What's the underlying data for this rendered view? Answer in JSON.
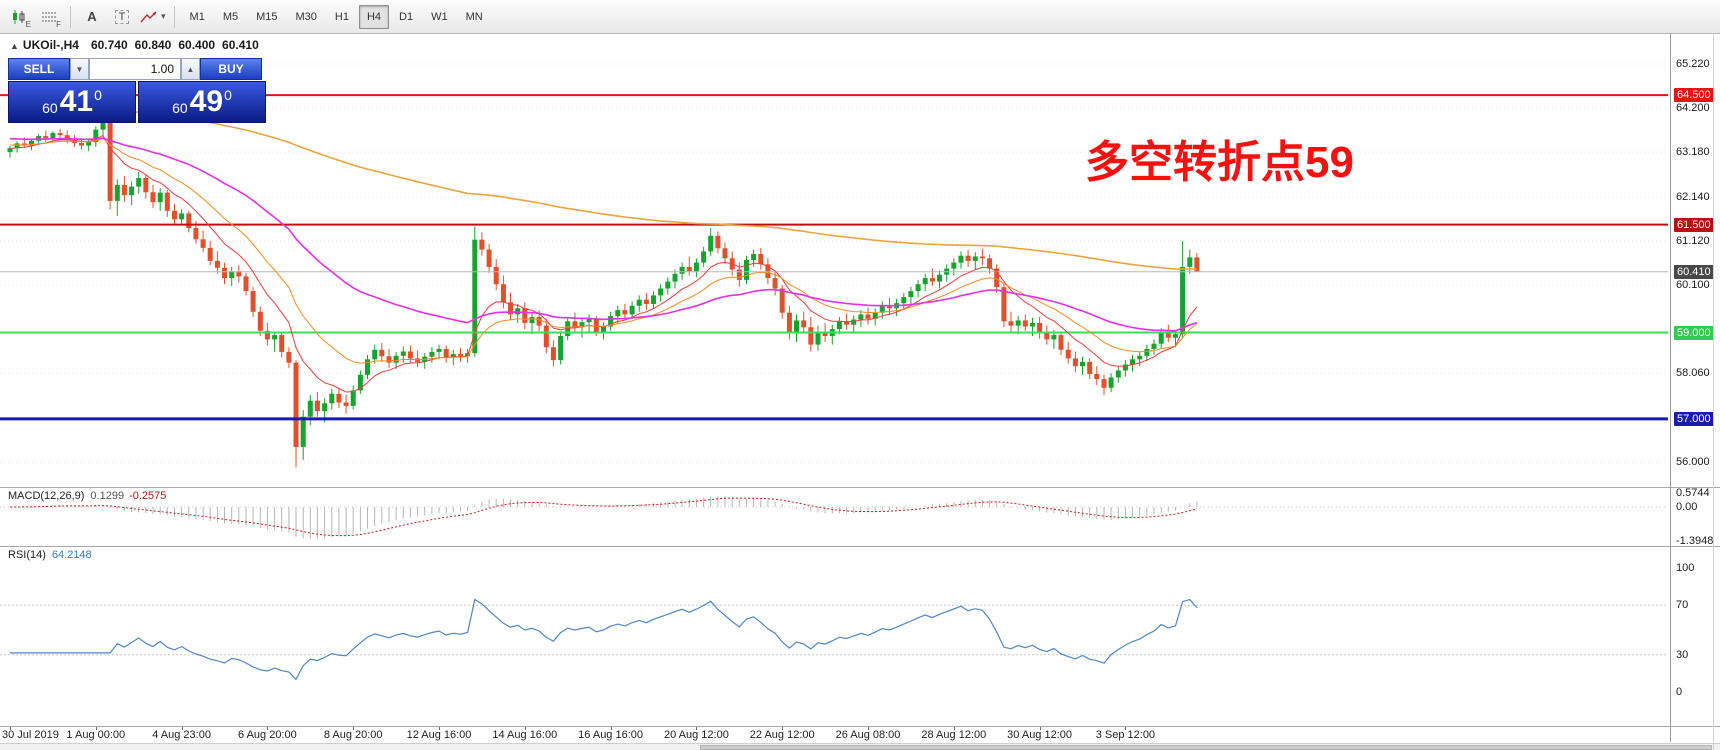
{
  "icons": {
    "caret_down": "▼",
    "caret_up": "▲",
    "dropdown_caret": "▾",
    "symbol_marker": "▲"
  },
  "toolbar": {
    "icon_e_label": "E",
    "icon_f_label": "F",
    "text_tool_label": "A",
    "textbox_tool_label": "T",
    "timeframes": [
      "M1",
      "M5",
      "M15",
      "M30",
      "H1",
      "H4",
      "D1",
      "W1",
      "MN"
    ],
    "active_timeframe": "H4"
  },
  "chart": {
    "info": {
      "marker": "▲",
      "symbol_period": "UKOil-,H4",
      "open": "60.740",
      "high": "60.840",
      "low": "60.400",
      "close": "60.410"
    },
    "annotation": {
      "text": "多空转折点59",
      "color": "#fb1010"
    },
    "trade_panel": {
      "sell_label": "SELL",
      "buy_label": "BUY",
      "volume": "1.00",
      "sell_price": {
        "small": "60",
        "big": "41",
        "sup": "0"
      },
      "buy_price": {
        "small": "60",
        "big": "49",
        "sup": "0"
      }
    },
    "levels": [
      {
        "p": 64.5,
        "label": "64.500",
        "color": "#e81414",
        "w": 2
      },
      {
        "p": 61.5,
        "label": "61.500",
        "color": "#bb1010",
        "w": 2
      },
      {
        "p": 60.41,
        "label": "60.410",
        "color": "#b8b8b8",
        "w": 1
      },
      {
        "p": 59.0,
        "label": "59.000",
        "color": "#35df57",
        "w": 2
      },
      {
        "p": 57.0,
        "label": "57.000",
        "color": "#1b1bb2",
        "w": 3
      }
    ],
    "price_axis": [
      {
        "p": 65.22,
        "t": "65.220",
        "grid": true
      },
      {
        "p": 64.5,
        "t": "64.500",
        "tag": "#e81414"
      },
      {
        "p": 64.2,
        "t": "64.200",
        "grid": true
      },
      {
        "p": 63.18,
        "t": "63.180",
        "grid": true
      },
      {
        "p": 62.14,
        "t": "62.140",
        "grid": true
      },
      {
        "p": 61.5,
        "t": "61.500",
        "tag": "#bb1010"
      },
      {
        "p": 61.12,
        "t": "61.120",
        "grid": true
      },
      {
        "p": 60.41,
        "t": "60.410",
        "tag": "#484848",
        "current": true
      },
      {
        "p": 60.1,
        "t": "60.100",
        "grid": true
      },
      {
        "p": 59.0,
        "t": "59.000",
        "tag": "#2fcc52"
      },
      {
        "p": 58.06,
        "t": "58.060",
        "grid": true
      },
      {
        "p": 57.0,
        "t": "57.000",
        "tag": "#1b1bb2"
      },
      {
        "p": 56.0,
        "t": "56.000",
        "grid": true
      }
    ]
  },
  "chart_data": {
    "type": "candlestick",
    "symbol": "UKOil-",
    "timeframe": "H4",
    "up_color": "#17a42e",
    "down_color": "#e2502b",
    "moving_averages": [
      {
        "period": 9,
        "seed": 63.25,
        "color": "#f23c3c",
        "width": 1
      },
      {
        "period": 18,
        "seed": 63.35,
        "color": "#ff8a1e",
        "width": 1
      },
      {
        "period": 45,
        "seed": 63.5,
        "color": "#e531e5",
        "width": 1.6
      },
      {
        "period": 200,
        "seed": 64.3,
        "color": "#eea43c",
        "width": 1.6
      }
    ],
    "time_labels": [
      {
        "index": 0,
        "text": "30 Jul 2019"
      },
      {
        "index": 12,
        "text": "1 Aug 00:00"
      },
      {
        "index": 24,
        "text": "4 Aug 23:00"
      },
      {
        "index": 36,
        "text": "6 Aug 20:00"
      },
      {
        "index": 48,
        "text": "8 Aug 20:00"
      },
      {
        "index": 60,
        "text": "12 Aug 16:00"
      },
      {
        "index": 72,
        "text": "14 Aug 16:00"
      },
      {
        "index": 84,
        "text": "16 Aug 16:00"
      },
      {
        "index": 96,
        "text": "20 Aug 12:00"
      },
      {
        "index": 108,
        "text": "22 Aug 12:00"
      },
      {
        "index": 120,
        "text": "26 Aug 08:00"
      },
      {
        "index": 132,
        "text": "28 Aug 12:00"
      },
      {
        "index": 144,
        "text": "30 Aug 12:00"
      },
      {
        "index": 156,
        "text": "3 Sep 12:00"
      }
    ],
    "candles": [
      [
        63.18,
        63.32,
        63.05,
        63.27
      ],
      [
        63.27,
        63.43,
        63.17,
        63.38
      ],
      [
        63.38,
        63.52,
        63.28,
        63.33
      ],
      [
        63.33,
        63.49,
        63.22,
        63.44
      ],
      [
        63.44,
        63.6,
        63.34,
        63.55
      ],
      [
        63.55,
        63.68,
        63.42,
        63.5
      ],
      [
        63.5,
        63.66,
        63.4,
        63.62
      ],
      [
        63.62,
        63.72,
        63.48,
        63.57
      ],
      [
        63.57,
        63.68,
        63.38,
        63.46
      ],
      [
        63.46,
        63.58,
        63.3,
        63.39
      ],
      [
        63.39,
        63.5,
        63.24,
        63.33
      ],
      [
        63.33,
        63.46,
        63.2,
        63.41
      ],
      [
        63.41,
        63.78,
        63.3,
        63.7
      ],
      [
        63.7,
        64.05,
        63.55,
        63.92
      ],
      [
        63.92,
        63.98,
        61.85,
        62.05
      ],
      [
        62.05,
        62.55,
        61.7,
        62.42
      ],
      [
        62.42,
        62.62,
        62.02,
        62.18
      ],
      [
        62.18,
        62.5,
        61.95,
        62.38
      ],
      [
        62.38,
        62.72,
        62.22,
        62.58
      ],
      [
        62.58,
        62.66,
        62.1,
        62.25
      ],
      [
        62.25,
        62.42,
        61.88,
        62.02
      ],
      [
        62.02,
        62.35,
        61.82,
        62.24
      ],
      [
        62.24,
        62.3,
        61.68,
        61.82
      ],
      [
        61.82,
        61.98,
        61.48,
        61.62
      ],
      [
        61.62,
        61.86,
        61.52,
        61.76
      ],
      [
        61.76,
        61.82,
        61.32,
        61.42
      ],
      [
        61.42,
        61.58,
        61.06,
        61.16
      ],
      [
        61.16,
        61.36,
        60.86,
        60.96
      ],
      [
        60.96,
        61.12,
        60.56,
        60.66
      ],
      [
        60.66,
        60.88,
        60.36,
        60.5
      ],
      [
        60.5,
        60.62,
        60.12,
        60.26
      ],
      [
        60.26,
        60.52,
        60.08,
        60.42
      ],
      [
        60.42,
        60.56,
        60.16,
        60.3
      ],
      [
        60.3,
        60.38,
        59.86,
        59.96
      ],
      [
        59.96,
        60.06,
        59.36,
        59.48
      ],
      [
        59.48,
        59.6,
        58.92,
        59.04
      ],
      [
        59.04,
        59.22,
        58.7,
        58.84
      ],
      [
        58.84,
        59.02,
        58.55,
        58.94
      ],
      [
        58.94,
        59.0,
        58.42,
        58.55
      ],
      [
        58.55,
        58.66,
        58.18,
        58.3
      ],
      [
        58.3,
        58.36,
        55.88,
        56.35
      ],
      [
        56.35,
        57.2,
        56.05,
        57.05
      ],
      [
        57.05,
        57.55,
        56.85,
        57.42
      ],
      [
        57.42,
        57.62,
        57.05,
        57.18
      ],
      [
        57.18,
        57.48,
        56.92,
        57.36
      ],
      [
        57.36,
        57.7,
        57.22,
        57.58
      ],
      [
        57.58,
        57.72,
        57.25,
        57.38
      ],
      [
        57.38,
        57.56,
        57.12,
        57.3
      ],
      [
        57.3,
        57.78,
        57.22,
        57.66
      ],
      [
        57.66,
        58.12,
        57.58,
        58.02
      ],
      [
        58.02,
        58.48,
        57.92,
        58.38
      ],
      [
        58.38,
        58.72,
        58.28,
        58.6
      ],
      [
        58.6,
        58.76,
        58.32,
        58.45
      ],
      [
        58.45,
        58.62,
        58.18,
        58.3
      ],
      [
        58.3,
        58.55,
        58.15,
        58.46
      ],
      [
        58.46,
        58.68,
        58.3,
        58.56
      ],
      [
        58.56,
        58.7,
        58.28,
        58.4
      ],
      [
        58.4,
        58.58,
        58.2,
        58.32
      ],
      [
        58.32,
        58.52,
        58.16,
        58.44
      ],
      [
        58.44,
        58.66,
        58.3,
        58.55
      ],
      [
        58.55,
        58.72,
        58.38,
        58.62
      ],
      [
        58.62,
        58.7,
        58.3,
        58.42
      ],
      [
        58.42,
        58.6,
        58.24,
        58.5
      ],
      [
        58.5,
        58.64,
        58.32,
        58.45
      ],
      [
        58.45,
        58.62,
        58.3,
        58.52
      ],
      [
        58.52,
        61.45,
        58.44,
        61.15
      ],
      [
        61.15,
        61.32,
        60.78,
        60.92
      ],
      [
        60.92,
        61.05,
        60.38,
        60.52
      ],
      [
        60.52,
        60.7,
        59.98,
        60.12
      ],
      [
        60.12,
        60.32,
        59.56,
        59.7
      ],
      [
        59.7,
        59.92,
        59.28,
        59.42
      ],
      [
        59.42,
        59.66,
        59.22,
        59.56
      ],
      [
        59.56,
        59.7,
        59.08,
        59.22
      ],
      [
        59.22,
        59.46,
        58.96,
        59.36
      ],
      [
        59.36,
        59.52,
        59.04,
        59.16
      ],
      [
        59.16,
        59.32,
        58.52,
        58.66
      ],
      [
        58.66,
        58.82,
        58.22,
        58.36
      ],
      [
        58.36,
        59.02,
        58.26,
        58.92
      ],
      [
        58.92,
        59.36,
        58.82,
        59.26
      ],
      [
        59.26,
        59.46,
        59.02,
        59.12
      ],
      [
        59.12,
        59.34,
        58.88,
        59.24
      ],
      [
        59.24,
        59.42,
        59.02,
        59.32
      ],
      [
        59.32,
        59.38,
        58.92,
        59.02
      ],
      [
        59.02,
        59.24,
        58.84,
        59.14
      ],
      [
        59.14,
        59.48,
        59.04,
        59.38
      ],
      [
        59.38,
        59.62,
        59.22,
        59.52
      ],
      [
        59.52,
        59.66,
        59.28,
        59.42
      ],
      [
        59.42,
        59.72,
        59.32,
        59.62
      ],
      [
        59.62,
        59.86,
        59.48,
        59.76
      ],
      [
        59.76,
        59.92,
        59.52,
        59.66
      ],
      [
        59.66,
        59.96,
        59.56,
        59.86
      ],
      [
        59.86,
        60.12,
        59.72,
        60.02
      ],
      [
        60.02,
        60.28,
        59.88,
        60.18
      ],
      [
        60.18,
        60.46,
        60.02,
        60.36
      ],
      [
        60.36,
        60.62,
        60.22,
        60.52
      ],
      [
        60.52,
        60.76,
        60.32,
        60.42
      ],
      [
        60.42,
        60.72,
        60.28,
        60.62
      ],
      [
        60.62,
        60.98,
        60.52,
        60.88
      ],
      [
        60.88,
        61.42,
        60.78,
        61.24
      ],
      [
        61.24,
        61.34,
        60.84,
        60.95
      ],
      [
        60.95,
        61.08,
        60.58,
        60.72
      ],
      [
        60.72,
        60.88,
        60.32,
        60.46
      ],
      [
        60.46,
        60.62,
        60.06,
        60.22
      ],
      [
        60.22,
        60.78,
        60.12,
        60.68
      ],
      [
        60.68,
        60.92,
        60.52,
        60.82
      ],
      [
        60.82,
        60.96,
        60.46,
        60.58
      ],
      [
        60.58,
        60.72,
        60.12,
        60.26
      ],
      [
        60.26,
        60.42,
        59.86,
        60.02
      ],
      [
        60.02,
        60.1,
        59.32,
        59.46
      ],
      [
        59.46,
        59.62,
        58.84,
        58.98
      ],
      [
        58.98,
        59.42,
        58.78,
        59.28
      ],
      [
        59.28,
        59.48,
        58.98,
        59.12
      ],
      [
        59.12,
        59.36,
        58.56,
        58.72
      ],
      [
        58.72,
        59.16,
        58.58,
        59.02
      ],
      [
        59.02,
        59.22,
        58.78,
        58.92
      ],
      [
        58.92,
        59.18,
        58.72,
        59.08
      ],
      [
        59.08,
        59.36,
        58.96,
        59.26
      ],
      [
        59.26,
        59.44,
        59.06,
        59.18
      ],
      [
        59.18,
        59.4,
        59.0,
        59.3
      ],
      [
        59.3,
        59.52,
        59.12,
        59.42
      ],
      [
        59.42,
        59.58,
        59.18,
        59.32
      ],
      [
        59.32,
        59.56,
        59.16,
        59.46
      ],
      [
        59.46,
        59.72,
        59.32,
        59.62
      ],
      [
        59.62,
        59.8,
        59.42,
        59.56
      ],
      [
        59.56,
        59.78,
        59.38,
        59.68
      ],
      [
        59.68,
        59.92,
        59.52,
        59.82
      ],
      [
        59.82,
        60.06,
        59.66,
        59.96
      ],
      [
        59.96,
        60.22,
        59.82,
        60.12
      ],
      [
        60.12,
        60.36,
        59.96,
        60.26
      ],
      [
        60.26,
        60.48,
        60.08,
        60.18
      ],
      [
        60.18,
        60.44,
        60.02,
        60.34
      ],
      [
        60.34,
        60.58,
        60.18,
        60.48
      ],
      [
        60.48,
        60.72,
        60.32,
        60.62
      ],
      [
        60.62,
        60.88,
        60.48,
        60.78
      ],
      [
        60.78,
        60.92,
        60.52,
        60.66
      ],
      [
        60.66,
        60.86,
        60.46,
        60.76
      ],
      [
        60.76,
        60.94,
        60.56,
        60.72
      ],
      [
        60.72,
        60.8,
        60.36,
        60.48
      ],
      [
        60.48,
        60.58,
        59.92,
        60.05
      ],
      [
        60.05,
        60.15,
        59.12,
        59.26
      ],
      [
        59.26,
        59.48,
        59.02,
        59.16
      ],
      [
        59.16,
        59.38,
        58.96,
        59.28
      ],
      [
        59.28,
        59.42,
        59.04,
        59.14
      ],
      [
        59.14,
        59.34,
        58.92,
        59.22
      ],
      [
        59.22,
        59.36,
        58.86,
        58.98
      ],
      [
        58.98,
        59.16,
        58.72,
        58.84
      ],
      [
        58.84,
        59.06,
        58.62,
        58.94
      ],
      [
        58.94,
        59.02,
        58.48,
        58.6
      ],
      [
        58.6,
        58.78,
        58.28,
        58.4
      ],
      [
        58.4,
        58.56,
        58.08,
        58.22
      ],
      [
        58.22,
        58.44,
        58.02,
        58.32
      ],
      [
        58.32,
        58.4,
        57.92,
        58.04
      ],
      [
        58.04,
        58.22,
        57.78,
        57.92
      ],
      [
        57.92,
        58.02,
        57.55,
        57.72
      ],
      [
        57.72,
        58.06,
        57.62,
        57.96
      ],
      [
        57.96,
        58.22,
        57.84,
        58.12
      ],
      [
        58.12,
        58.36,
        57.98,
        58.26
      ],
      [
        58.26,
        58.48,
        58.1,
        58.38
      ],
      [
        58.38,
        58.56,
        58.22,
        58.46
      ],
      [
        58.46,
        58.72,
        58.34,
        58.62
      ],
      [
        58.62,
        58.84,
        58.48,
        58.74
      ],
      [
        58.74,
        59.1,
        58.62,
        59.0
      ],
      [
        59.0,
        59.18,
        58.78,
        58.88
      ],
      [
        58.88,
        59.06,
        58.66,
        58.96
      ],
      [
        58.96,
        61.12,
        58.88,
        60.52
      ],
      [
        60.52,
        60.92,
        60.36,
        60.74
      ],
      [
        60.74,
        60.84,
        60.4,
        60.41
      ]
    ]
  },
  "macd": {
    "title": "MACD(12,26,9)",
    "value_main": "0.1299",
    "value_signal": "-0.2575",
    "params": {
      "fast": 12,
      "slow": 26,
      "signal": 9
    },
    "range": {
      "max": 0.5744,
      "min": -1.3948
    },
    "axis": [
      {
        "v": 0.5744,
        "t": "0.5744"
      },
      {
        "v": 0,
        "t": "0.00"
      },
      {
        "v": -1.3948,
        "t": "-1.3948"
      }
    ]
  },
  "rsi": {
    "title": "RSI(14)",
    "value": "64.2148",
    "period": 14,
    "color": "#4f86c6",
    "levels": [
      70,
      30
    ],
    "axis": [
      {
        "v": 100,
        "t": "100"
      },
      {
        "v": 70,
        "t": "70"
      },
      {
        "v": 30,
        "t": "30"
      },
      {
        "v": 0,
        "t": "0"
      }
    ]
  }
}
